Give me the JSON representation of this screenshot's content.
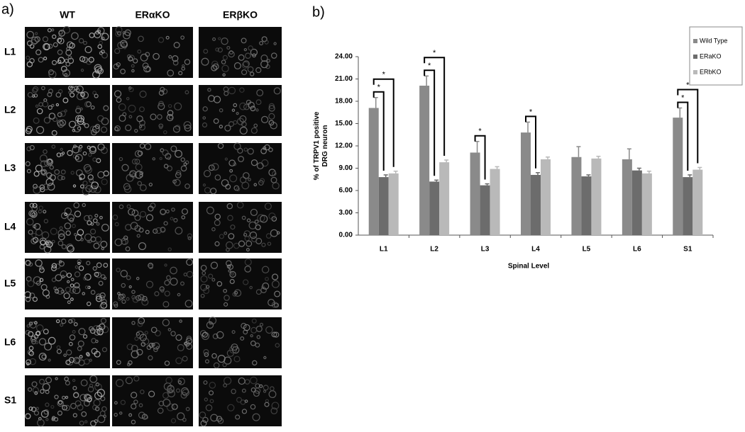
{
  "panel_a": {
    "label": "a)",
    "columns": [
      "WT",
      "ERαKO",
      "ERβKO"
    ],
    "rows": [
      "L1",
      "L2",
      "L3",
      "L4",
      "L5",
      "L6",
      "S1"
    ]
  },
  "chart_data": {
    "type": "bar",
    "panel_label": "b)",
    "ylabel": [
      "% of TRPV1 positive",
      "DRG neuron"
    ],
    "xlabel": "Spinal Level",
    "categories": [
      "L1",
      "L2",
      "L3",
      "L4",
      "L5",
      "L6",
      "S1"
    ],
    "series": [
      {
        "name": "Wild Type",
        "color": "#8a8a8a",
        "values": [
          17.1,
          20.1,
          11.1,
          13.8,
          10.5,
          10.2,
          15.8
        ],
        "errors": [
          1.4,
          1.3,
          1.5,
          1.4,
          1.4,
          1.4,
          1.3
        ]
      },
      {
        "name": "ERaKO",
        "color": "#6c6c6c",
        "values": [
          7.8,
          7.2,
          6.7,
          8.1,
          7.9,
          8.7,
          7.8
        ],
        "errors": [
          0.3,
          0.2,
          0.2,
          0.3,
          0.2,
          0.3,
          0.3
        ]
      },
      {
        "name": "ERbKO",
        "color": "#b9b9b9",
        "values": [
          8.3,
          9.8,
          8.9,
          10.2,
          10.3,
          8.3,
          8.8
        ],
        "errors": [
          0.3,
          0.3,
          0.3,
          0.3,
          0.3,
          0.3,
          0.3
        ]
      }
    ],
    "ylim": [
      0,
      24
    ],
    "yticks": [
      {
        "value": 0,
        "label": "0.00"
      },
      {
        "value": 3,
        "label": "3.00"
      },
      {
        "value": 6,
        "label": "6.00"
      },
      {
        "value": 9,
        "label": "9.00"
      },
      {
        "value": 12,
        "label": "12.00"
      },
      {
        "value": 15,
        "label": "15.00"
      },
      {
        "value": 18,
        "label": "18.00"
      },
      {
        "value": 21,
        "label": "21.00"
      },
      {
        "value": 24,
        "label": "24.00"
      }
    ],
    "legend": "top-right",
    "annotations": [
      {
        "text": "*",
        "category": "L1",
        "from": "Wild Type",
        "to": "ERaKO"
      },
      {
        "text": "*",
        "category": "L1",
        "from": "Wild Type",
        "to": "ERbKO"
      },
      {
        "text": "*",
        "category": "L2",
        "from": "Wild Type",
        "to": "ERaKO"
      },
      {
        "text": "*",
        "category": "L2",
        "from": "Wild Type",
        "to": "ERbKO"
      },
      {
        "text": "*",
        "category": "L3",
        "from": "Wild Type",
        "to": "ERaKO"
      },
      {
        "text": "*",
        "category": "L4",
        "from": "Wild Type",
        "to": "ERaKO"
      },
      {
        "text": "*",
        "category": "S1",
        "from": "Wild Type",
        "to": "ERaKO"
      },
      {
        "text": "*",
        "category": "S1",
        "from": "Wild Type",
        "to": "ERbKO"
      }
    ]
  }
}
